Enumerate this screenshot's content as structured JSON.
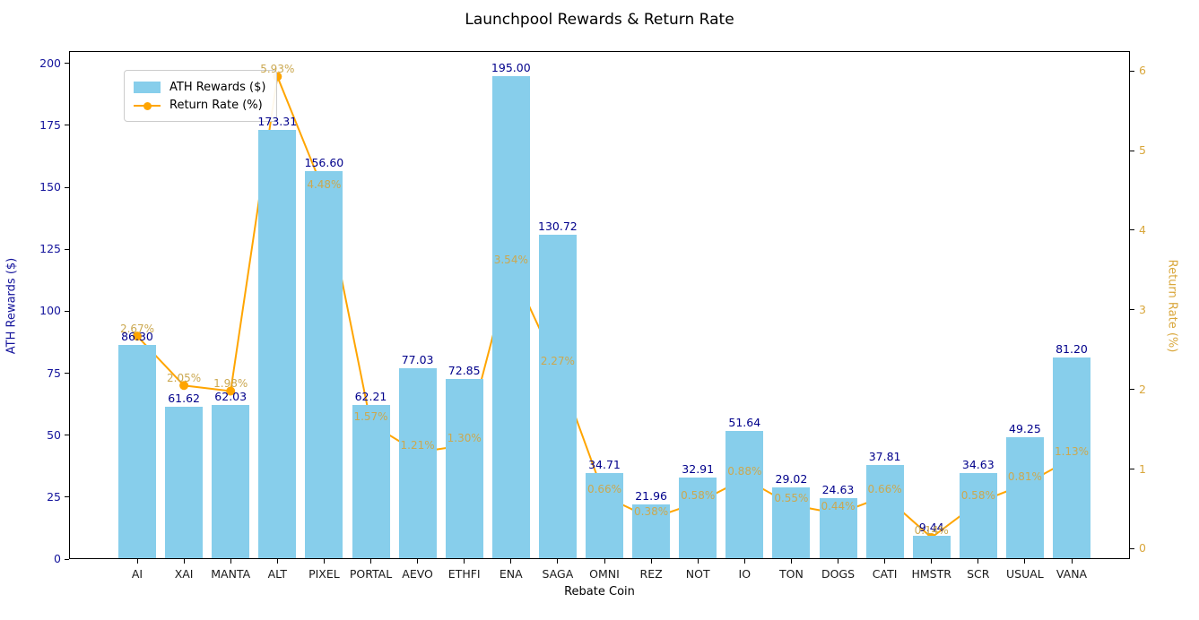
{
  "title": "Launchpool Rewards & Return Rate",
  "legend": {
    "items": [
      {
        "label": "ATH Rewards ($)",
        "type": "bar"
      },
      {
        "label": "Return Rate (%)",
        "type": "line"
      }
    ]
  },
  "colors": {
    "bar": "#87CEEB",
    "bar_label": "#00008B",
    "line": "#FFA500",
    "marker": "#FFA500",
    "left_axis_text": "#14149c",
    "right_axis_text": "#D9A73C",
    "rate_label": "#CBA850",
    "x_tick_text": "#1a1a1a",
    "background": "#ffffff"
  },
  "chart_data": {
    "type": "bar+line",
    "title": "Launchpool Rewards & Return Rate",
    "xlabel": "Rebate Coin",
    "ylabel_left": "ATH Rewards ($)",
    "ylabel_right": "Return Rate (%)",
    "grid": false,
    "legend_position": "upper-left",
    "categories": [
      "AI",
      "XAI",
      "MANTA",
      "ALT",
      "PIXEL",
      "PORTAL",
      "AEVO",
      "ETHFI",
      "ENA",
      "SAGA",
      "OMNI",
      "REZ",
      "NOT",
      "IO",
      "TON",
      "DOGS",
      "CATI",
      "HMSTR",
      "SCR",
      "USUAL",
      "VANA"
    ],
    "series": [
      {
        "name": "ATH Rewards ($)",
        "type": "bar",
        "axis": "left",
        "values": [
          86.3,
          61.62,
          62.03,
          173.31,
          156.6,
          62.21,
          77.03,
          72.85,
          195.0,
          130.72,
          34.71,
          21.96,
          32.91,
          51.64,
          29.02,
          24.63,
          37.81,
          9.44,
          34.63,
          49.25,
          81.2
        ]
      },
      {
        "name": "Return Rate (%)",
        "type": "line",
        "axis": "right",
        "values": [
          2.67,
          2.05,
          1.98,
          5.93,
          4.48,
          1.57,
          1.21,
          1.3,
          3.54,
          2.27,
          0.66,
          0.38,
          0.58,
          0.88,
          0.55,
          0.44,
          0.66,
          0.14,
          0.58,
          0.81,
          1.13
        ]
      }
    ],
    "left_axis": {
      "ticks": [
        0,
        25,
        50,
        75,
        100,
        125,
        150,
        175,
        200
      ],
      "range": [
        0,
        205
      ]
    },
    "right_axis": {
      "ticks": [
        0,
        1,
        2,
        3,
        4,
        5,
        6
      ],
      "range": [
        -0.13,
        6.25
      ]
    }
  }
}
